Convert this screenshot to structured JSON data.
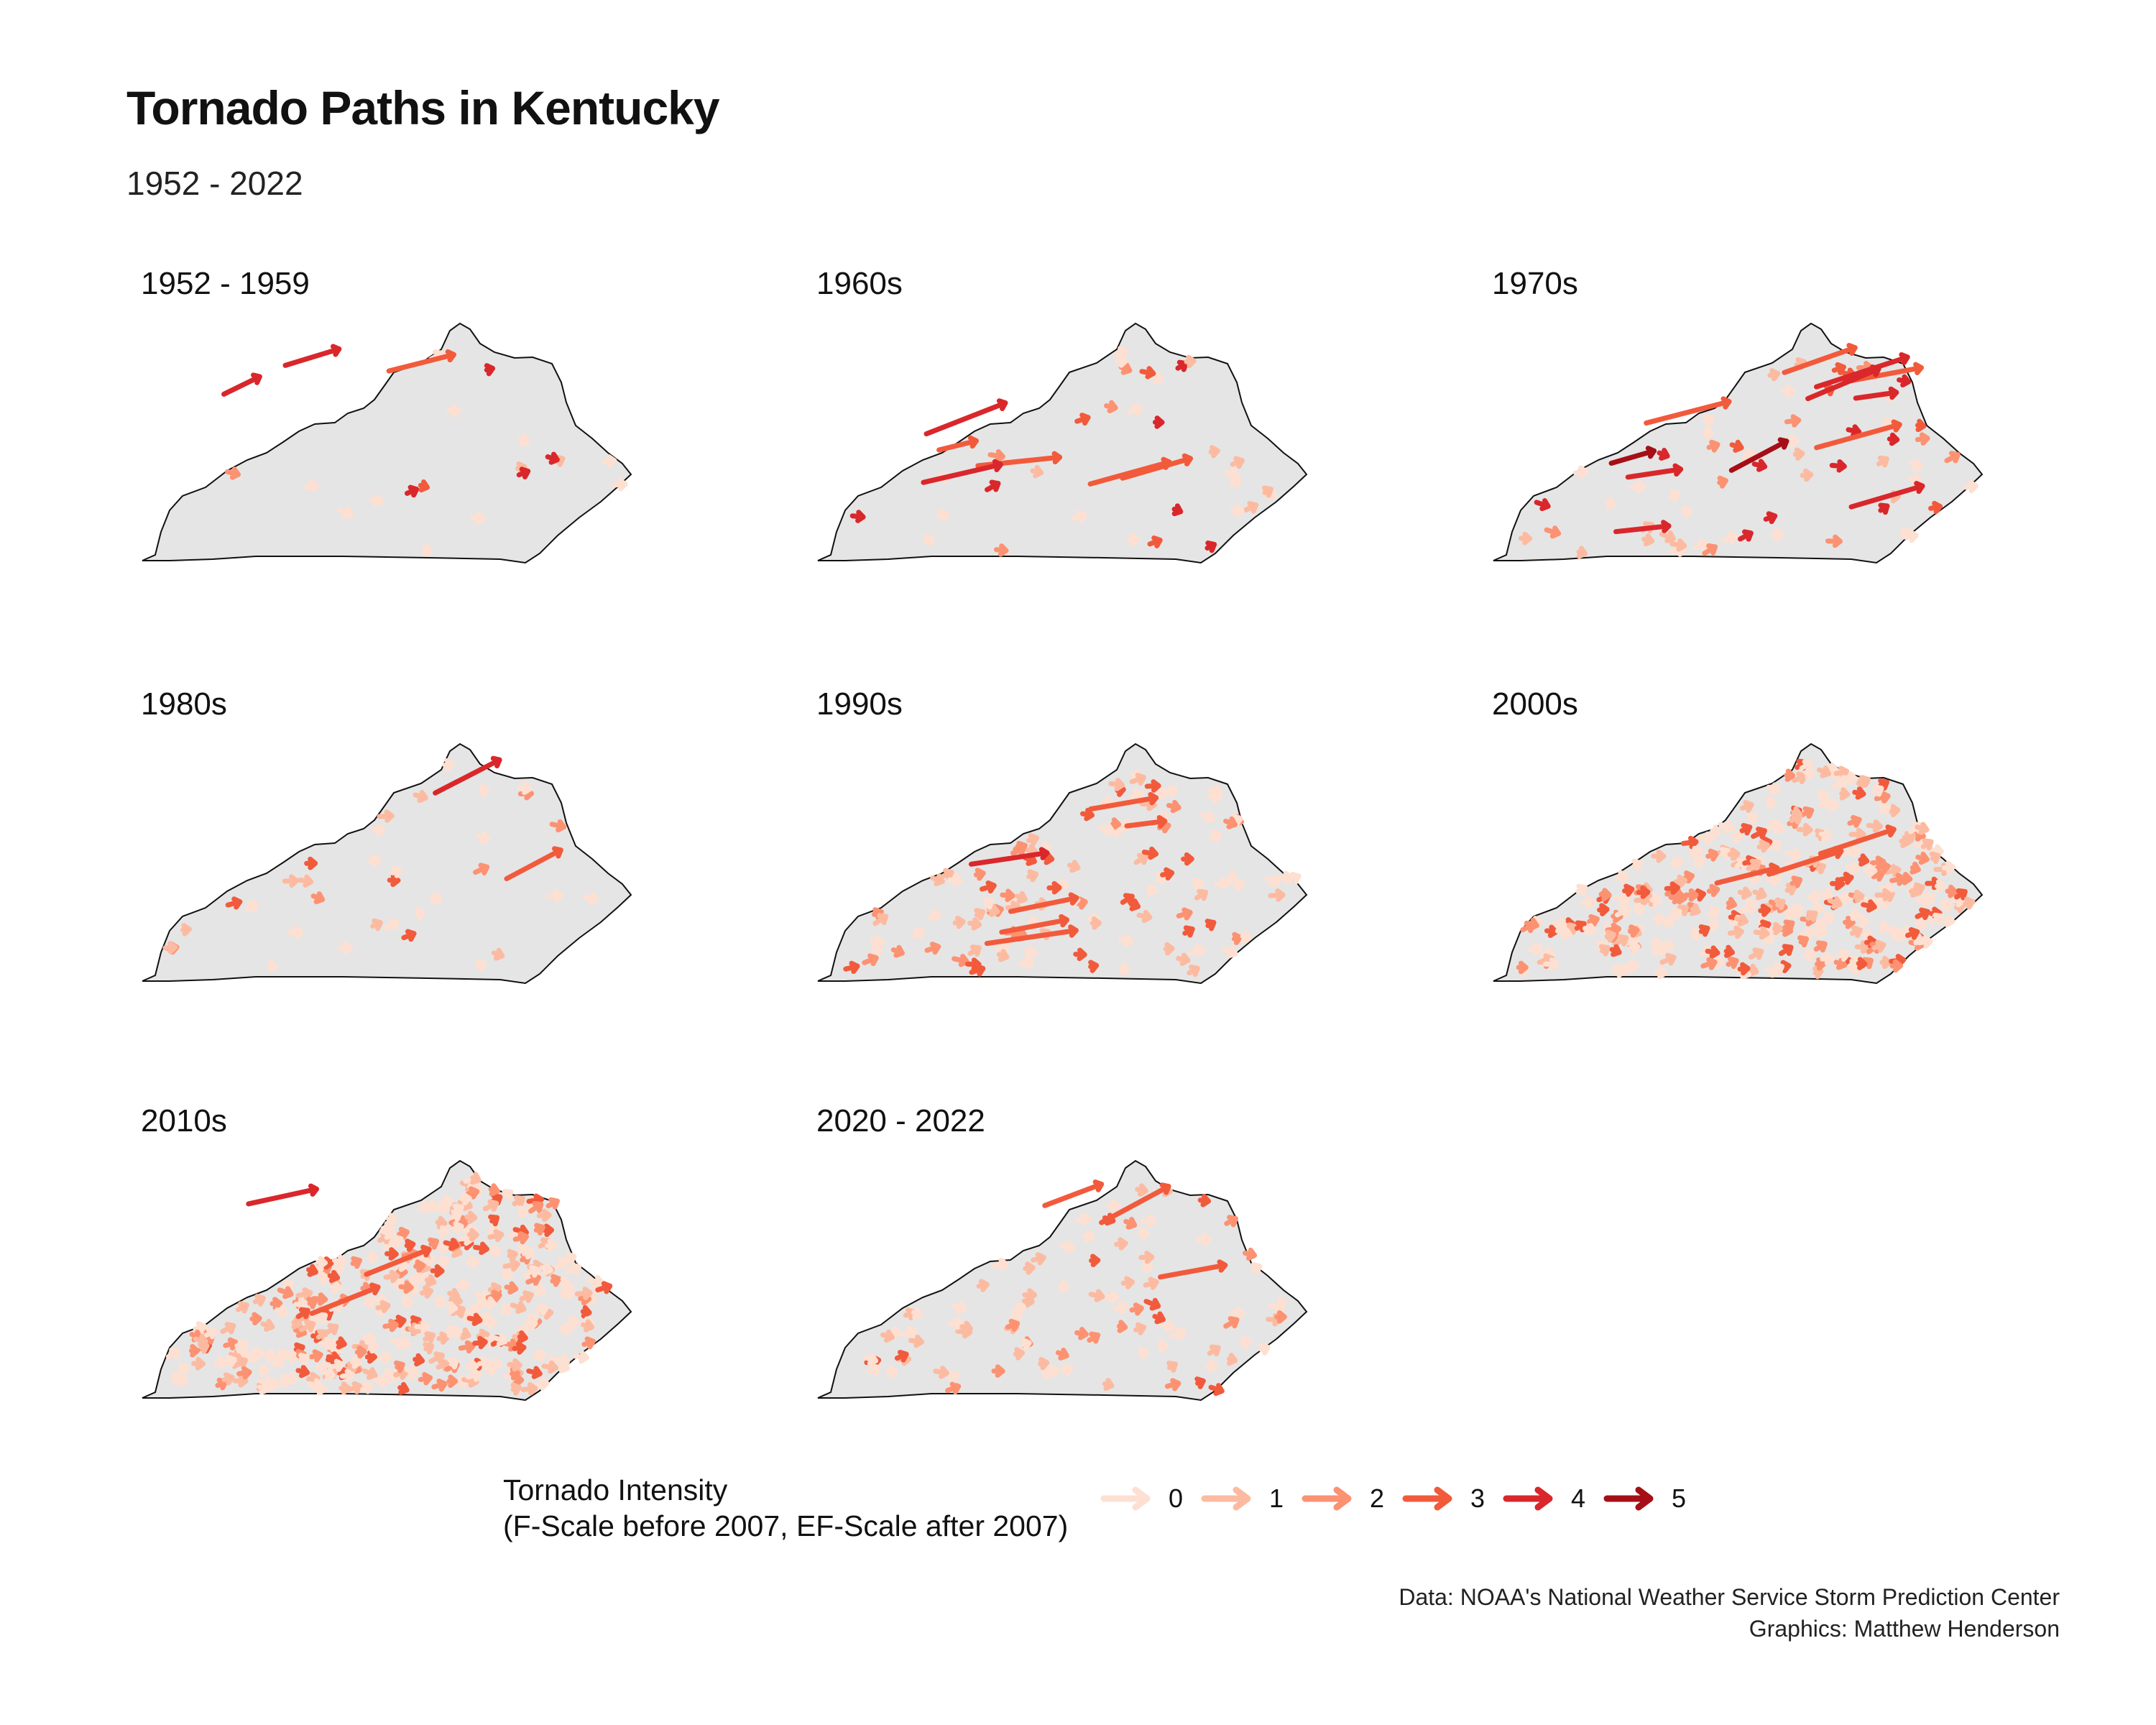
{
  "title": "Tornado Paths in Kentucky",
  "subtitle": "1952 - 2022",
  "legend": {
    "title_line1": "Tornado Intensity",
    "title_line2": "(F-Scale before 2007, EF-Scale after 2007)",
    "items": [
      {
        "label": "0",
        "color": "#fde0d2"
      },
      {
        "label": "1",
        "color": "#fcbba1"
      },
      {
        "label": "2",
        "color": "#fc9272"
      },
      {
        "label": "3",
        "color": "#f25a3c"
      },
      {
        "label": "4",
        "color": "#d9272b"
      },
      {
        "label": "5",
        "color": "#a50f15"
      }
    ]
  },
  "state_fill": "#e5e5e5",
  "panels": [
    {
      "label": "1952 - 1959",
      "density": 18,
      "long_paths": 3
    },
    {
      "label": "1960s",
      "density": 32,
      "long_paths": 6
    },
    {
      "label": "1970s",
      "density": 60,
      "long_paths": 12
    },
    {
      "label": "1980s",
      "density": 34,
      "long_paths": 2
    },
    {
      "label": "1990s",
      "density": 110,
      "long_paths": 6
    },
    {
      "label": "2000s",
      "density": 300,
      "long_paths": 3
    },
    {
      "label": "2010s",
      "density": 340,
      "long_paths": 3
    },
    {
      "label": "2020 - 2022",
      "density": 90,
      "long_paths": 3
    }
  ],
  "caption": {
    "line1": "Data: NOAA's National Weather Service Storm Prediction Center",
    "line2": "Graphics: Matthew Henderson"
  }
}
